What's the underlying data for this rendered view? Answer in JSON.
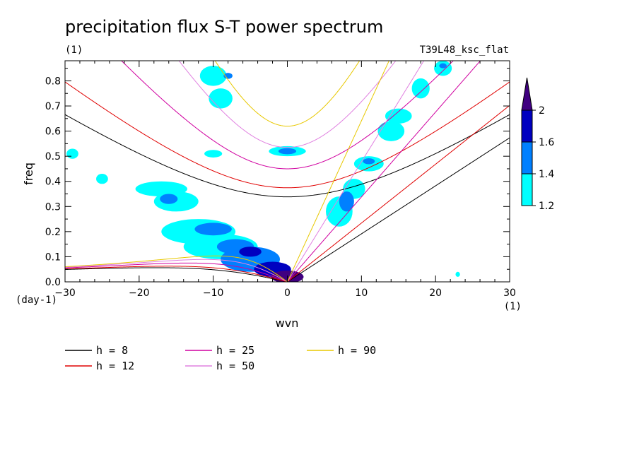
{
  "chart_data": {
    "type": "contour",
    "title": "precipitation flux S-T power spectrum",
    "subtitle_left": "(1)",
    "subtitle_right": "T39L48_ksc_flat",
    "xlabel": "wvn",
    "ylabel": "freq",
    "xunit": "(1)",
    "yunit": "(day-1)",
    "xlim": [
      -30,
      30
    ],
    "ylim": [
      0,
      0.88
    ],
    "xticks": [
      -30,
      -20,
      -10,
      0,
      10,
      20,
      30
    ],
    "yticks": [
      0.0,
      0.1,
      0.2,
      0.3,
      0.4,
      0.5,
      0.6,
      0.7,
      0.8
    ],
    "contour_levels": [
      1.2,
      1.4,
      1.6,
      2
    ],
    "colorbar_labels": [
      "1.2",
      "1.4",
      "1.6",
      "2"
    ],
    "level_colors": [
      "#00ffff",
      "#0080ff",
      "#0000c0",
      "#400080"
    ],
    "series": [
      {
        "name": "h =  8",
        "h": 8,
        "color": "#000000"
      },
      {
        "name": "h = 12",
        "h": 12,
        "color": "#e00000"
      },
      {
        "name": "h = 25",
        "h": 25,
        "color": "#d000a0"
      },
      {
        "name": "h = 50",
        "h": 50,
        "color": "#e080e0"
      },
      {
        "name": "h = 90",
        "h": 90,
        "color": "#e8c800"
      }
    ],
    "blobs": [
      {
        "x": 0,
        "y": 0.02,
        "rx": 2.2,
        "ry": 0.025,
        "level": 4
      },
      {
        "x": -2,
        "y": 0.05,
        "rx": 2.5,
        "ry": 0.03,
        "level": 3
      },
      {
        "x": -5,
        "y": 0.09,
        "rx": 4,
        "ry": 0.05,
        "level": 2
      },
      {
        "x": -9,
        "y": 0.14,
        "rx": 5,
        "ry": 0.05,
        "level": 1
      },
      {
        "x": -12,
        "y": 0.2,
        "rx": 5,
        "ry": 0.05,
        "level": 1
      },
      {
        "x": -10,
        "y": 0.21,
        "rx": 2.5,
        "ry": 0.025,
        "level": 2
      },
      {
        "x": -7,
        "y": 0.14,
        "rx": 2.5,
        "ry": 0.03,
        "level": 2
      },
      {
        "x": -5,
        "y": 0.12,
        "rx": 1.5,
        "ry": 0.02,
        "level": 3
      },
      {
        "x": -17,
        "y": 0.37,
        "rx": 3.5,
        "ry": 0.03,
        "level": 1
      },
      {
        "x": -15,
        "y": 0.32,
        "rx": 3,
        "ry": 0.04,
        "level": 1
      },
      {
        "x": -16,
        "y": 0.33,
        "rx": 1.2,
        "ry": 0.02,
        "level": 2
      },
      {
        "x": -10,
        "y": 0.82,
        "rx": 1.8,
        "ry": 0.04,
        "level": 1
      },
      {
        "x": -9,
        "y": 0.73,
        "rx": 1.6,
        "ry": 0.04,
        "level": 1
      },
      {
        "x": -8,
        "y": 0.82,
        "rx": 0.6,
        "ry": 0.012,
        "level": 2
      },
      {
        "x": 0,
        "y": 0.52,
        "rx": 2.5,
        "ry": 0.02,
        "level": 1
      },
      {
        "x": 0,
        "y": 0.52,
        "rx": 1.2,
        "ry": 0.012,
        "level": 2
      },
      {
        "x": -10,
        "y": 0.51,
        "rx": 1.2,
        "ry": 0.015,
        "level": 1
      },
      {
        "x": 7,
        "y": 0.28,
        "rx": 1.8,
        "ry": 0.06,
        "level": 1
      },
      {
        "x": 8,
        "y": 0.32,
        "rx": 1,
        "ry": 0.04,
        "level": 2
      },
      {
        "x": 9,
        "y": 0.37,
        "rx": 1.5,
        "ry": 0.04,
        "level": 1
      },
      {
        "x": 11,
        "y": 0.47,
        "rx": 2,
        "ry": 0.03,
        "level": 1
      },
      {
        "x": 11,
        "y": 0.48,
        "rx": 0.8,
        "ry": 0.012,
        "level": 2
      },
      {
        "x": 14,
        "y": 0.6,
        "rx": 1.8,
        "ry": 0.04,
        "level": 1
      },
      {
        "x": 15,
        "y": 0.66,
        "rx": 1.8,
        "ry": 0.03,
        "level": 1
      },
      {
        "x": 18,
        "y": 0.77,
        "rx": 1.2,
        "ry": 0.04,
        "level": 1
      },
      {
        "x": 21,
        "y": 0.85,
        "rx": 1.2,
        "ry": 0.03,
        "level": 1
      },
      {
        "x": 21,
        "y": 0.86,
        "rx": 0.5,
        "ry": 0.01,
        "level": 2
      },
      {
        "x": -29,
        "y": 0.51,
        "rx": 0.8,
        "ry": 0.02,
        "level": 1
      },
      {
        "x": -25,
        "y": 0.41,
        "rx": 0.8,
        "ry": 0.02,
        "level": 1
      },
      {
        "x": 23,
        "y": 0.03,
        "rx": 0.3,
        "ry": 0.01,
        "level": 1
      }
    ]
  }
}
